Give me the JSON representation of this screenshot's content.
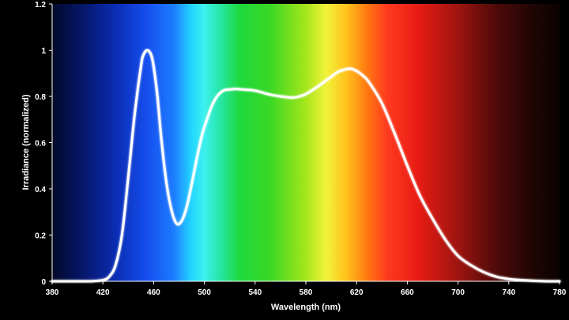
{
  "chart_data": {
    "type": "line",
    "title": "",
    "xlabel": "Wavelength (nm)",
    "ylabel": "Irradiance (normalized)",
    "xlim": [
      380,
      780
    ],
    "ylim": [
      0,
      1.2
    ],
    "x_ticks": [
      380,
      420,
      460,
      500,
      540,
      580,
      620,
      660,
      700,
      740,
      780
    ],
    "y_ticks": [
      0,
      0.2,
      0.4,
      0.6,
      0.8,
      1,
      1.2
    ],
    "x_tick_labels": [
      "380",
      "420",
      "460",
      "500",
      "540",
      "580",
      "620",
      "660",
      "700",
      "740",
      "780"
    ],
    "y_tick_labels": [
      "0",
      "0.2",
      "0.4",
      "0.6",
      "0.8",
      "1",
      "1.2"
    ],
    "grid": false,
    "background": "visible-spectrum color gradient",
    "line_color": "#ffffff",
    "series": [
      {
        "x": [
          380,
          400,
          410,
          420,
          425,
          430,
          435,
          440,
          445,
          450,
          452,
          455,
          458,
          460,
          463,
          466,
          470,
          474,
          478,
          482,
          486,
          490,
          494,
          498,
          502,
          506,
          510,
          515,
          520,
          525,
          530,
          540,
          550,
          560,
          570,
          575,
          580,
          590,
          600,
          605,
          610,
          615,
          620,
          625,
          630,
          640,
          650,
          660,
          670,
          680,
          690,
          700,
          710,
          720,
          730,
          740,
          750,
          760,
          770,
          780
        ],
        "y": [
          0,
          0,
          0,
          0.005,
          0.02,
          0.07,
          0.2,
          0.45,
          0.72,
          0.93,
          0.98,
          1.0,
          0.98,
          0.93,
          0.8,
          0.62,
          0.43,
          0.31,
          0.25,
          0.26,
          0.32,
          0.42,
          0.53,
          0.63,
          0.7,
          0.76,
          0.8,
          0.825,
          0.83,
          0.832,
          0.83,
          0.825,
          0.81,
          0.8,
          0.795,
          0.8,
          0.81,
          0.845,
          0.885,
          0.905,
          0.915,
          0.92,
          0.91,
          0.89,
          0.86,
          0.77,
          0.64,
          0.5,
          0.37,
          0.27,
          0.18,
          0.11,
          0.07,
          0.04,
          0.02,
          0.01,
          0.005,
          0.002,
          0,
          0
        ]
      }
    ]
  }
}
